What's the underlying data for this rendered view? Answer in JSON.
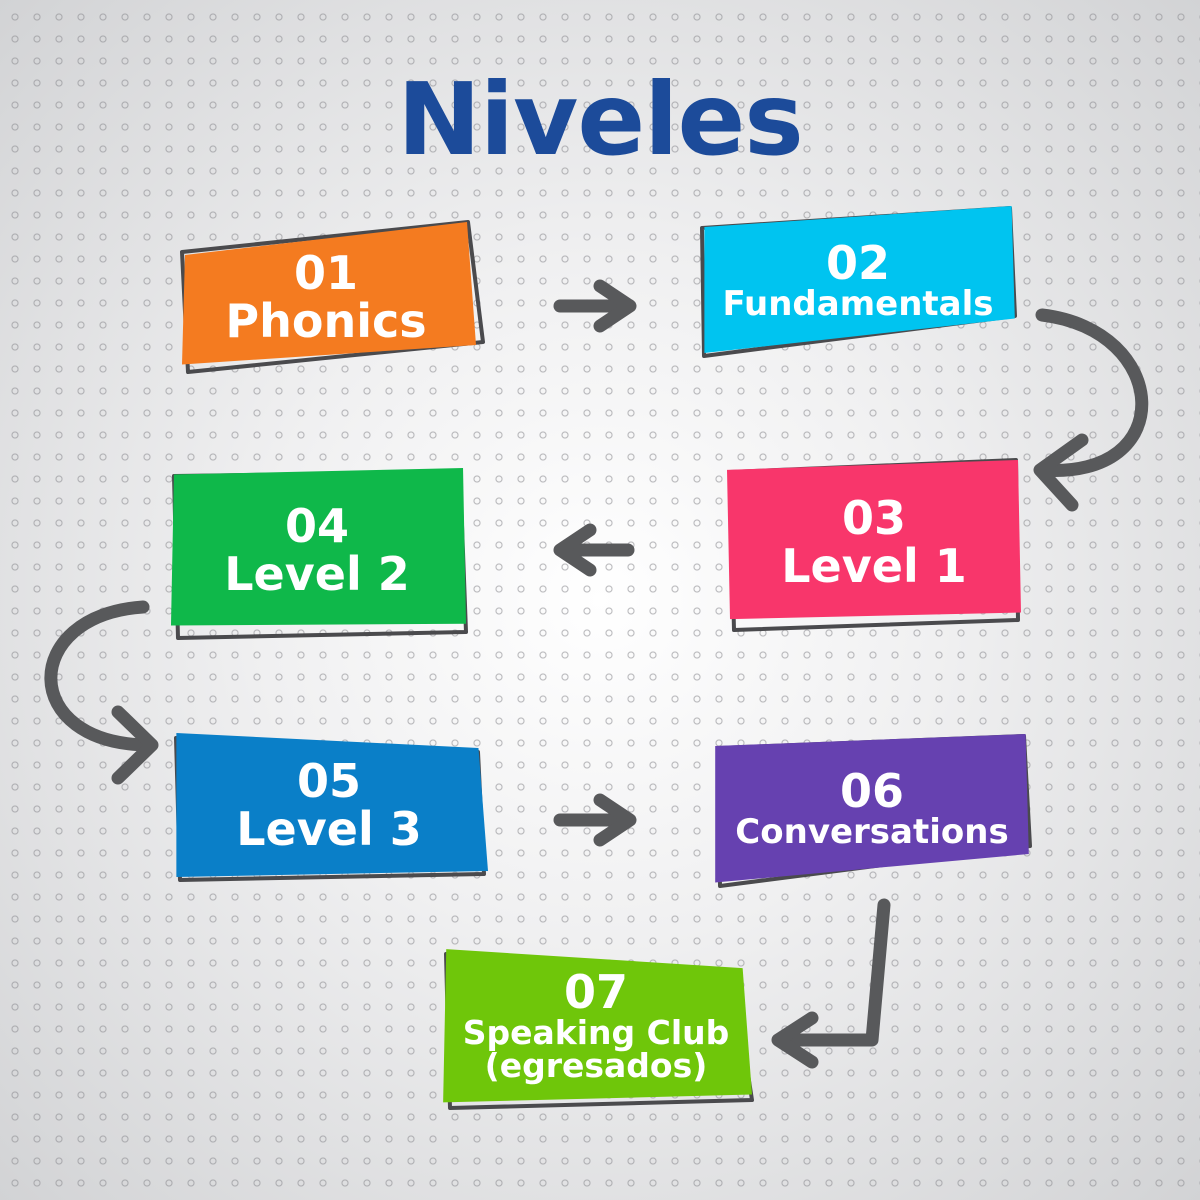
{
  "title": "Niveles",
  "colors": {
    "title": "#1c4b9a",
    "arrow": "#58595b",
    "outline": "#4a4a4d"
  },
  "levels": [
    {
      "number": "01",
      "name": "Phonics",
      "color": "#f47b20"
    },
    {
      "number": "02",
      "name": "Fundamentals",
      "color": "#00c4f0"
    },
    {
      "number": "03",
      "name": "Level 1",
      "color": "#f8366b"
    },
    {
      "number": "04",
      "name": "Level 2",
      "color": "#0fb84a"
    },
    {
      "number": "05",
      "name": "Level 3",
      "color": "#0a7fc8"
    },
    {
      "number": "06",
      "name": "Conversations",
      "color": "#6641b0"
    },
    {
      "number": "07",
      "name": "Speaking Club",
      "note": "(egresados)",
      "color": "#6fc60a"
    }
  ]
}
